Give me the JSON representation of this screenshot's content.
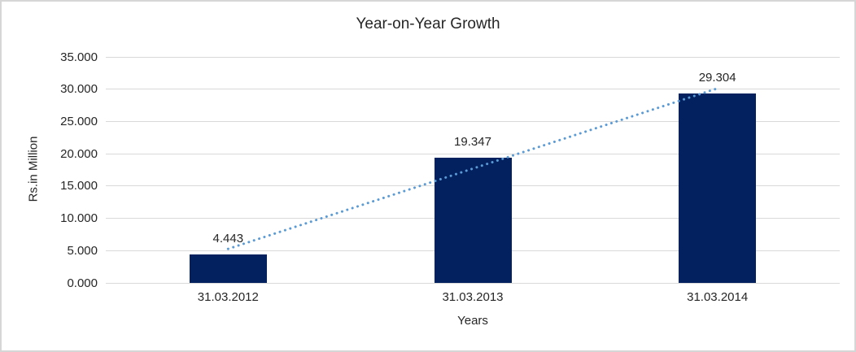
{
  "chart_data": {
    "type": "bar",
    "title": "Year-on-Year Growth",
    "xlabel": "Years",
    "ylabel": "Rs.in Million",
    "categories": [
      "31.03.2012",
      "31.03.2013",
      "31.03.2014"
    ],
    "values": [
      4.443,
      19.347,
      29.304
    ],
    "value_labels": [
      "4.443",
      "19.347",
      "29.304"
    ],
    "y_ticks": [
      0,
      5,
      10,
      15,
      20,
      25,
      30,
      35
    ],
    "y_tick_labels": [
      "0.000",
      "5.000",
      "10.000",
      "15.000",
      "20.000",
      "25.000",
      "30.000",
      "35.000"
    ],
    "ylim": [
      0,
      35
    ],
    "grid": true,
    "legend": false,
    "bar_color": "#03215F",
    "gridline_color": "#D9D9D9",
    "text_color": "#262626",
    "trendline": {
      "type": "linear",
      "style": "dotted",
      "color": "#5B9BD5"
    }
  }
}
